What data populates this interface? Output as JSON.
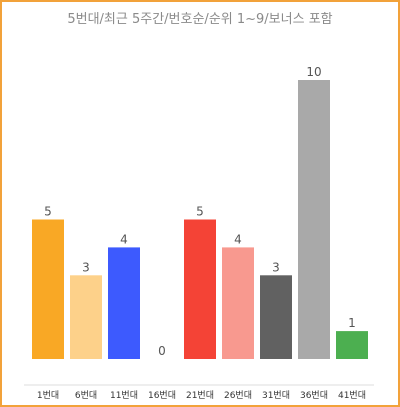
{
  "chart_data": {
    "type": "bar",
    "title": "5번대/최근 5주간/번호순/순위 1~9/보너스 포함",
    "categories": [
      "1번대",
      "6번대",
      "11번대",
      "16번대",
      "21번대",
      "26번대",
      "31번대",
      "36번대",
      "41번대"
    ],
    "values": [
      5,
      3,
      4,
      0,
      5,
      4,
      3,
      10,
      1
    ],
    "colors": [
      "#f9a825",
      "#fdd18a",
      "#3d5afe",
      "#9e9e9e",
      "#f44336",
      "#f8998f",
      "#616161",
      "#a9a9a9",
      "#4caf50"
    ],
    "ylim": [
      0,
      10
    ],
    "grid": false,
    "legend": "none"
  }
}
